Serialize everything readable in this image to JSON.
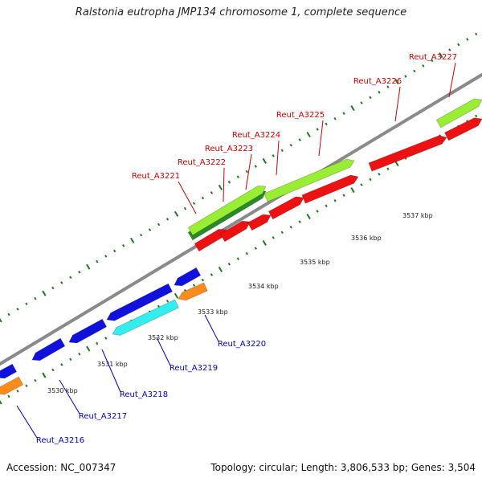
{
  "title": "Ralstonia eutropha JMP134 chromosome 1, complete sequence",
  "footer": {
    "accession": "Accession: NC_007347",
    "info": "Topology: circular; Length: 3,806,533 bp; Genes: 3,504"
  },
  "colors": {
    "backbone": "#8a8a8a",
    "tick": "#1f7a1f",
    "forward_label": "#cc0000",
    "reverse_label": "#0000cc",
    "red": "#ee1111",
    "lime": "#99ee33",
    "darkgreen": "#2a8a2a",
    "blue": "#1111dd",
    "cyan": "#33eeee",
    "orange": "#ff8c1a"
  },
  "chart_data": {
    "type": "genome_map",
    "sequence_units": "kbp",
    "axis_labels": [
      "3530 kbp",
      "3531 kbp",
      "3532 kbp",
      "3533 kbp",
      "3534 kbp",
      "3535 kbp",
      "3536 kbp",
      "3537 kbp"
    ],
    "forward_gene_labels": [
      "Reut_A3221",
      "Reut_A3222",
      "Reut_A3223",
      "Reut_A3224",
      "Reut_A3225",
      "Reut_A3226",
      "Reut_A3227"
    ],
    "reverse_gene_labels": [
      "Reut_A3216",
      "Reut_A3217",
      "Reut_A3218",
      "Reut_A3219",
      "Reut_A3220"
    ]
  }
}
